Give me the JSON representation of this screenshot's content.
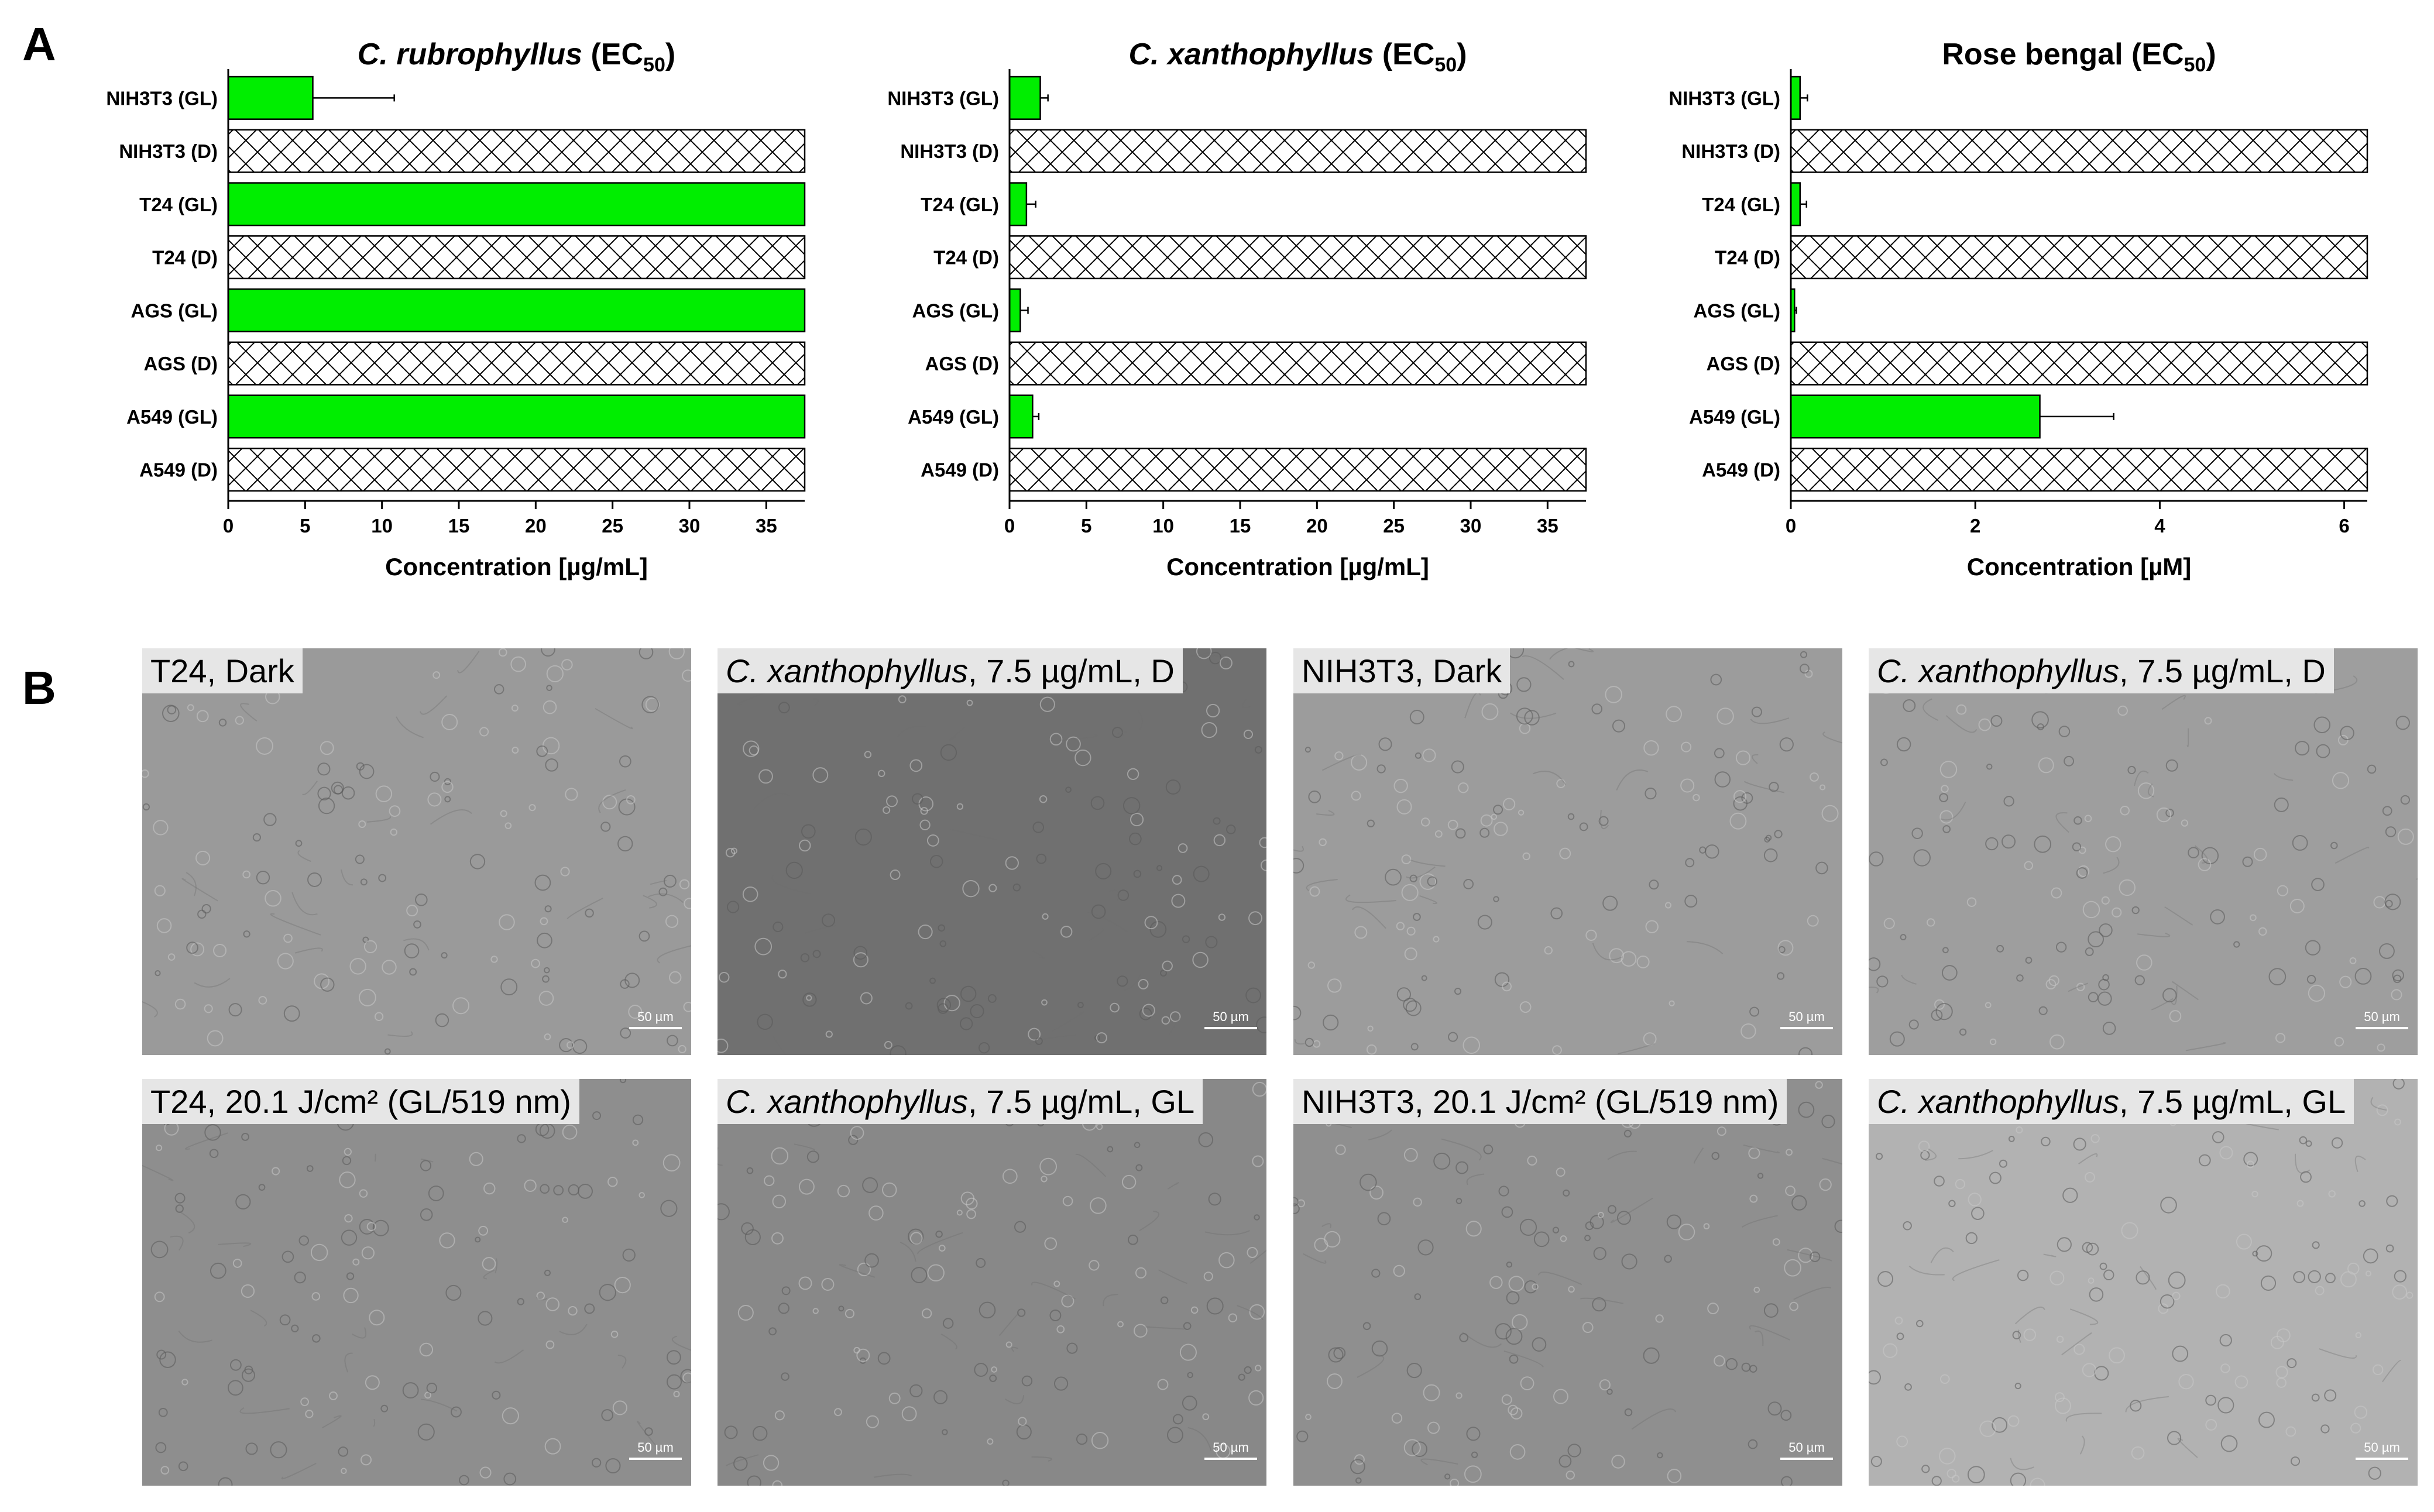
{
  "panels": {
    "a": "A",
    "b": "B"
  },
  "colors": {
    "bar": "#00ee00",
    "hatch": "#000000"
  },
  "chart_data": [
    {
      "type": "bar",
      "title_italic": "C. rubrophyllus",
      "title_rest": " (EC",
      "title_sub": "50",
      "title_end": ")",
      "categories": [
        "NIH3T3 (GL)",
        "NIH3T3 (D)",
        "T24 (GL)",
        "T24 (D)",
        "AGS (GL)",
        "AGS (D)",
        "A549 (GL)",
        "A549 (D)"
      ],
      "values": [
        5.5,
        37.5,
        37.5,
        37.5,
        37.5,
        37.5,
        37.5,
        37.5
      ],
      "errors": [
        5.3,
        0,
        0,
        0,
        0,
        0,
        0,
        0
      ],
      "hatched": [
        false,
        true,
        false,
        true,
        false,
        true,
        false,
        true
      ],
      "xticks": [
        "0",
        "5",
        "10",
        "15",
        "20",
        "25",
        "30",
        "35"
      ],
      "xtick_values": [
        0,
        5,
        10,
        15,
        20,
        25,
        30,
        35
      ],
      "xlim": [
        0,
        37.5
      ],
      "xlabel": "Concentration [µg/mL]"
    },
    {
      "type": "bar",
      "title_italic": "C. xanthophyllus",
      "title_rest": " (EC",
      "title_sub": "50",
      "title_end": ")",
      "categories": [
        "NIH3T3 (GL)",
        "NIH3T3 (D)",
        "T24 (GL)",
        "T24 (D)",
        "AGS (GL)",
        "AGS (D)",
        "A549 (GL)",
        "A549 (D)"
      ],
      "values": [
        2.0,
        37.5,
        1.1,
        37.5,
        0.7,
        37.5,
        1.5,
        37.5
      ],
      "errors": [
        0.5,
        0,
        0.6,
        0,
        0.5,
        0,
        0.4,
        0
      ],
      "hatched": [
        false,
        true,
        false,
        true,
        false,
        true,
        false,
        true
      ],
      "xticks": [
        "0",
        "5",
        "10",
        "15",
        "20",
        "25",
        "30",
        "35"
      ],
      "xtick_values": [
        0,
        5,
        10,
        15,
        20,
        25,
        30,
        35
      ],
      "xlim": [
        0,
        37.5
      ],
      "xlabel": "Concentration [µg/mL]"
    },
    {
      "type": "bar",
      "title_italic": "",
      "title_rest": "Rose bengal (EC",
      "title_sub": "50",
      "title_end": ")",
      "categories": [
        "NIH3T3 (GL)",
        "NIH3T3 (D)",
        "T24 (GL)",
        "T24 (D)",
        "AGS (GL)",
        "AGS (D)",
        "A549 (GL)",
        "A549 (D)"
      ],
      "values": [
        0.1,
        6.25,
        0.1,
        6.25,
        0.04,
        6.25,
        2.7,
        6.25
      ],
      "errors": [
        0.08,
        0,
        0.07,
        0,
        0.02,
        0,
        0.8,
        0
      ],
      "hatched": [
        false,
        true,
        false,
        true,
        false,
        true,
        false,
        true
      ],
      "xticks": [
        "0",
        "2",
        "4",
        "6"
      ],
      "xtick_values": [
        0,
        2,
        4,
        6
      ],
      "xlim": [
        0,
        6.25
      ],
      "xlabel": "Concentration [µM]"
    }
  ],
  "images": [
    {
      "label_italic": "",
      "label_rest": "T24, Dark",
      "scale": "50 µm",
      "tone": "#9a9a9a"
    },
    {
      "label_italic": "C. xanthophyllus",
      "label_rest": ", 7.5 µg/mL, D",
      "scale": "50 µm",
      "tone": "#707070"
    },
    {
      "label_italic": "",
      "label_rest": "NIH3T3, Dark",
      "scale": "50 µm",
      "tone": "#9c9c9c"
    },
    {
      "label_italic": "C. xanthophyllus",
      "label_rest": ", 7.5 µg/mL, D",
      "scale": "50 µm",
      "tone": "#9e9e9e"
    },
    {
      "label_italic": "",
      "label_rest": "T24, 20.1 J/cm² (GL/519 nm)",
      "scale": "50 µm",
      "tone": "#8e8e8e"
    },
    {
      "label_italic": "C. xanthophyllus",
      "label_rest": ", 7.5 µg/mL, GL",
      "scale": "50 µm",
      "tone": "#888888"
    },
    {
      "label_italic": "",
      "label_rest": "NIH3T3, 20.1 J/cm² (GL/519 nm)",
      "scale": "50 µm",
      "tone": "#8f8f8f"
    },
    {
      "label_italic": "C. xanthophyllus",
      "label_rest": ", 7.5 µg/mL, GL",
      "scale": "50 µm",
      "tone": "#b2b2b2"
    }
  ]
}
